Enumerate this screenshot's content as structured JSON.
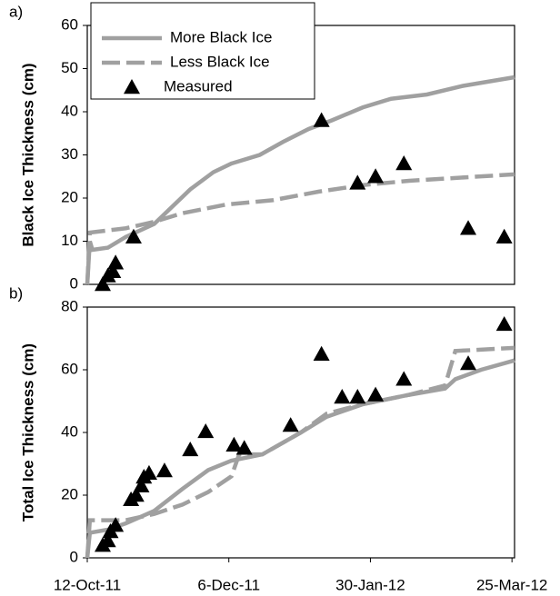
{
  "chart_data": [
    {
      "type": "line",
      "panel_label": "a)",
      "ylabel": "Black Ice Thickness (cm)",
      "xlim": [
        "2011-10-12",
        "2012-03-26"
      ],
      "ylim": [
        0,
        60
      ],
      "yticks": [
        0,
        10,
        20,
        30,
        40,
        50,
        60
      ],
      "legend": "upper left",
      "series": [
        {
          "name": "More Black Ice",
          "color": "#a0a0a0",
          "style": "solid",
          "x": [
            "2011-10-12",
            "2011-10-13",
            "2011-10-14",
            "2011-10-20",
            "2011-10-27",
            "2011-11-07",
            "2011-11-14",
            "2011-11-21",
            "2011-11-30",
            "2011-12-07",
            "2011-12-18",
            "2011-12-27",
            "2012-01-06",
            "2012-01-15",
            "2012-01-27",
            "2012-02-07",
            "2012-02-21",
            "2012-03-06",
            "2012-03-26"
          ],
          "values": [
            0,
            10,
            8,
            8.5,
            11,
            14,
            18,
            22,
            26,
            28,
            30,
            33,
            36,
            38,
            41,
            43,
            44,
            46,
            48
          ]
        },
        {
          "name": "Less Black Ice",
          "color": "#a0a0a0",
          "style": "dashed",
          "x": [
            "2011-10-12",
            "2011-10-13",
            "2011-10-20",
            "2011-10-27",
            "2011-11-07",
            "2011-11-18",
            "2011-12-05",
            "2011-12-23",
            "2012-01-10",
            "2012-01-27",
            "2012-02-14",
            "2012-03-26"
          ],
          "values": [
            0,
            12,
            12.5,
            13,
            14.5,
            16.5,
            18.5,
            19.5,
            21.5,
            23,
            24,
            25.5
          ]
        },
        {
          "name": "Measured",
          "color": "#000000",
          "style": "triangle",
          "x": [
            "2011-10-18",
            "2011-10-20",
            "2011-10-22",
            "2011-10-23",
            "2011-10-30",
            "2012-01-11",
            "2012-01-25",
            "2012-02-01",
            "2012-02-12",
            "2012-03-08",
            "2012-03-22"
          ],
          "values": [
            0,
            2,
            3,
            5,
            11,
            38,
            23.5,
            25,
            28,
            13,
            11
          ]
        }
      ]
    },
    {
      "type": "line",
      "panel_label": "b)",
      "ylabel": "Total Ice Thickness (cm)",
      "xlim": [
        "2011-10-12",
        "2012-03-26"
      ],
      "ylim": [
        0,
        80
      ],
      "yticks": [
        0,
        20,
        40,
        60,
        80
      ],
      "xticks": [
        {
          "value": "2011-10-12",
          "label": "12-Oct-11"
        },
        {
          "value": "2011-12-06",
          "label": "6-Dec-11"
        },
        {
          "value": "2012-01-30",
          "label": "30-Jan-12"
        },
        {
          "value": "2012-03-25",
          "label": "25-Mar-12"
        }
      ],
      "series": [
        {
          "name": "More Black Ice",
          "color": "#a0a0a0",
          "style": "solid",
          "x": [
            "2011-10-12",
            "2011-10-13",
            "2011-10-20",
            "2011-10-27",
            "2011-11-07",
            "2011-11-18",
            "2011-11-28",
            "2011-12-07",
            "2011-12-19",
            "2012-01-03",
            "2012-01-13",
            "2012-01-27",
            "2012-02-14",
            "2012-02-28",
            "2012-03-03",
            "2012-03-13",
            "2012-03-26"
          ],
          "values": [
            0,
            8,
            9,
            11,
            15,
            22,
            28,
            31,
            33,
            40,
            45,
            49,
            52,
            54,
            57,
            60,
            63
          ]
        },
        {
          "name": "Less Black Ice",
          "color": "#a0a0a0",
          "style": "dashed",
          "x": [
            "2011-10-12",
            "2011-10-13",
            "2011-10-20",
            "2011-10-27",
            "2011-11-07",
            "2011-11-18",
            "2011-11-28",
            "2011-12-07",
            "2011-12-10",
            "2011-12-19",
            "2012-01-03",
            "2012-01-13",
            "2012-01-27",
            "2012-02-14",
            "2012-02-28",
            "2012-03-03",
            "2012-03-26"
          ],
          "values": [
            0,
            12,
            12,
            12,
            14,
            17,
            21,
            26,
            33,
            33,
            40,
            46,
            49,
            52,
            55,
            66,
            67
          ]
        },
        {
          "name": "Measured",
          "color": "#000000",
          "style": "triangle",
          "x": [
            "2011-10-18",
            "2011-10-20",
            "2011-10-21",
            "2011-10-23",
            "2011-10-29",
            "2011-10-31",
            "2011-11-02",
            "2011-11-03",
            "2011-11-05",
            "2011-11-11",
            "2011-11-21",
            "2011-11-27",
            "2011-12-08",
            "2011-12-12",
            "2011-12-30",
            "2012-01-11",
            "2012-01-19",
            "2012-01-25",
            "2012-02-01",
            "2012-02-12",
            "2012-03-08",
            "2012-03-22"
          ],
          "values": [
            4,
            5.5,
            8.4,
            10.4,
            18.6,
            20,
            23,
            25.8,
            27,
            27.8,
            34.5,
            40.3,
            36,
            35,
            42.3,
            65,
            51.3,
            51.3,
            52,
            57,
            62,
            74.5
          ]
        }
      ]
    }
  ]
}
